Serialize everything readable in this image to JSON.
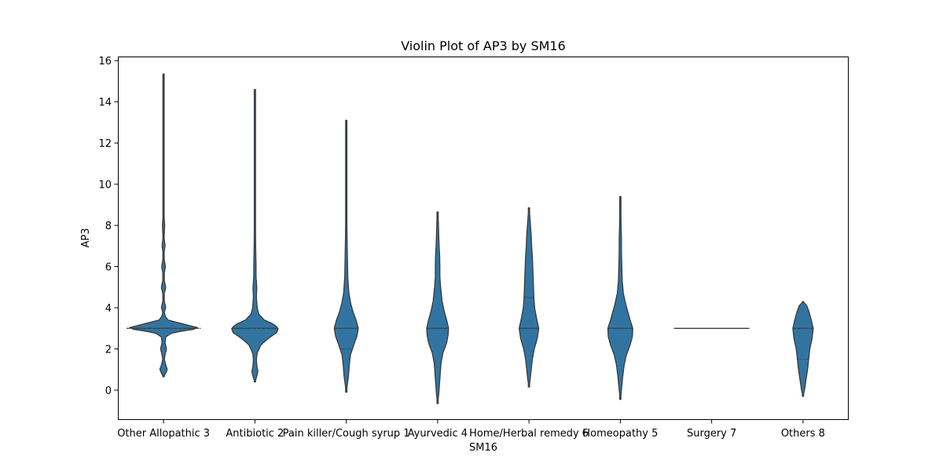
{
  "chart_data": {
    "type": "violin",
    "title": "Violin Plot of AP3 by SM16",
    "xlabel": "SM16",
    "ylabel": "AP3",
    "ylim": [
      -1.45,
      16.2
    ],
    "yticks": [
      0,
      2,
      4,
      6,
      8,
      10,
      12,
      14,
      16
    ],
    "violin_color": "#3274a1",
    "edge_color": "#3a3a3a",
    "categories": [
      "Other Allopathic 3",
      "Antibiotic 2",
      "Pain killer/Cough syrup 1",
      "Ayurvedic 4",
      "Home/Herbal remedy 6",
      "Homeopathy 5",
      "Surgery 7",
      "Others 8"
    ],
    "violins": [
      {
        "range": [
          0.65,
          15.35
        ],
        "quartiles": [
          3.0,
          3.0,
          3.0
        ],
        "profile": [
          [
            0.65,
            0.0
          ],
          [
            0.8,
            0.05
          ],
          [
            1.0,
            0.1
          ],
          [
            1.2,
            0.06
          ],
          [
            1.5,
            0.02
          ],
          [
            1.8,
            0.05
          ],
          [
            2.0,
            0.08
          ],
          [
            2.3,
            0.04
          ],
          [
            2.6,
            0.06
          ],
          [
            2.8,
            0.25
          ],
          [
            3.0,
            0.98
          ],
          [
            3.2,
            0.55
          ],
          [
            3.4,
            0.12
          ],
          [
            3.6,
            0.04
          ],
          [
            3.8,
            0.02
          ],
          [
            4.0,
            0.06
          ],
          [
            4.3,
            0.02
          ],
          [
            4.7,
            0.02
          ],
          [
            5.0,
            0.06
          ],
          [
            5.3,
            0.02
          ],
          [
            5.7,
            0.02
          ],
          [
            6.0,
            0.05
          ],
          [
            6.3,
            0.02
          ],
          [
            6.7,
            0.015
          ],
          [
            7.0,
            0.04
          ],
          [
            7.4,
            0.015
          ],
          [
            8.0,
            0.03
          ],
          [
            8.5,
            0.012
          ],
          [
            10,
            0.01
          ],
          [
            12,
            0.01
          ],
          [
            14,
            0.01
          ],
          [
            15.35,
            0.0
          ]
        ]
      },
      {
        "range": [
          0.4,
          14.6
        ],
        "quartiles": [
          3.0,
          3.0,
          3.0
        ],
        "profile": [
          [
            0.4,
            0.0
          ],
          [
            0.6,
            0.04
          ],
          [
            0.9,
            0.08
          ],
          [
            1.2,
            0.05
          ],
          [
            1.5,
            0.04
          ],
          [
            1.8,
            0.06
          ],
          [
            2.2,
            0.16
          ],
          [
            2.5,
            0.35
          ],
          [
            2.8,
            0.58
          ],
          [
            3.0,
            0.62
          ],
          [
            3.2,
            0.5
          ],
          [
            3.4,
            0.25
          ],
          [
            3.7,
            0.1
          ],
          [
            4.0,
            0.06
          ],
          [
            4.5,
            0.04
          ],
          [
            5.0,
            0.05
          ],
          [
            5.5,
            0.03
          ],
          [
            6.0,
            0.03
          ],
          [
            7.0,
            0.02
          ],
          [
            8.0,
            0.015
          ],
          [
            10,
            0.01
          ],
          [
            12,
            0.01
          ],
          [
            14.6,
            0.0
          ]
        ]
      },
      {
        "range": [
          -0.1,
          13.1
        ],
        "quartiles": [
          2.0,
          3.0,
          3.0
        ],
        "profile": [
          [
            -0.1,
            0.0
          ],
          [
            0.3,
            0.03
          ],
          [
            0.7,
            0.06
          ],
          [
            1.2,
            0.08
          ],
          [
            1.7,
            0.11
          ],
          [
            2.2,
            0.2
          ],
          [
            2.6,
            0.28
          ],
          [
            3.0,
            0.32
          ],
          [
            3.4,
            0.26
          ],
          [
            3.8,
            0.18
          ],
          [
            4.2,
            0.12
          ],
          [
            4.7,
            0.07
          ],
          [
            5.5,
            0.04
          ],
          [
            6.5,
            0.03
          ],
          [
            7.5,
            0.02
          ],
          [
            8.5,
            0.015
          ],
          [
            10,
            0.012
          ],
          [
            12,
            0.01
          ],
          [
            13.1,
            0.0
          ]
        ]
      },
      {
        "range": [
          -0.65,
          8.65
        ],
        "quartiles": [
          3.0,
          3.0,
          3.0
        ],
        "profile": [
          [
            -0.65,
            0.0
          ],
          [
            -0.2,
            0.03
          ],
          [
            0.3,
            0.05
          ],
          [
            0.8,
            0.07
          ],
          [
            1.3,
            0.09
          ],
          [
            1.8,
            0.14
          ],
          [
            2.3,
            0.24
          ],
          [
            2.7,
            0.28
          ],
          [
            3.0,
            0.29
          ],
          [
            3.4,
            0.24
          ],
          [
            3.8,
            0.18
          ],
          [
            4.3,
            0.12
          ],
          [
            5.0,
            0.08
          ],
          [
            5.5,
            0.06
          ],
          [
            6.0,
            0.06
          ],
          [
            6.5,
            0.055
          ],
          [
            7.0,
            0.04
          ],
          [
            7.5,
            0.03
          ],
          [
            8.2,
            0.02
          ],
          [
            8.65,
            0.0
          ]
        ]
      },
      {
        "range": [
          0.15,
          8.85
        ],
        "quartiles": [
          3.0,
          3.0,
          4.5
        ],
        "profile": [
          [
            0.15,
            0.0
          ],
          [
            0.5,
            0.03
          ],
          [
            1.0,
            0.06
          ],
          [
            1.5,
            0.09
          ],
          [
            2.0,
            0.14
          ],
          [
            2.5,
            0.22
          ],
          [
            3.0,
            0.26
          ],
          [
            3.5,
            0.2
          ],
          [
            4.0,
            0.15
          ],
          [
            4.5,
            0.13
          ],
          [
            5.0,
            0.12
          ],
          [
            5.5,
            0.11
          ],
          [
            6.0,
            0.1
          ],
          [
            6.5,
            0.09
          ],
          [
            7.0,
            0.07
          ],
          [
            7.5,
            0.06
          ],
          [
            8.0,
            0.04
          ],
          [
            8.5,
            0.02
          ],
          [
            8.85,
            0.0
          ]
        ]
      },
      {
        "range": [
          -0.45,
          9.4
        ],
        "quartiles": [
          3.0,
          3.0,
          3.0
        ],
        "profile": [
          [
            -0.45,
            0.0
          ],
          [
            0.0,
            0.03
          ],
          [
            0.6,
            0.06
          ],
          [
            1.2,
            0.1
          ],
          [
            1.7,
            0.16
          ],
          [
            2.2,
            0.26
          ],
          [
            2.6,
            0.32
          ],
          [
            3.0,
            0.33
          ],
          [
            3.4,
            0.26
          ],
          [
            3.8,
            0.2
          ],
          [
            4.2,
            0.14
          ],
          [
            4.7,
            0.08
          ],
          [
            5.3,
            0.05
          ],
          [
            6.0,
            0.04
          ],
          [
            6.7,
            0.03
          ],
          [
            7.3,
            0.03
          ],
          [
            8.0,
            0.02
          ],
          [
            8.7,
            0.015
          ],
          [
            9.4,
            0.0
          ]
        ]
      },
      {
        "range": [
          3.0,
          3.0
        ],
        "quartiles": [
          3.0,
          3.0,
          3.0
        ],
        "flat": true,
        "profile": []
      },
      {
        "range": [
          -0.3,
          4.3
        ],
        "quartiles": [
          1.5,
          3.0,
          3.0
        ],
        "profile": [
          [
            -0.3,
            0.0
          ],
          [
            0.0,
            0.04
          ],
          [
            0.5,
            0.08
          ],
          [
            1.0,
            0.12
          ],
          [
            1.5,
            0.15
          ],
          [
            2.0,
            0.18
          ],
          [
            2.5,
            0.24
          ],
          [
            3.0,
            0.27
          ],
          [
            3.4,
            0.22
          ],
          [
            3.8,
            0.16
          ],
          [
            4.1,
            0.1
          ],
          [
            4.3,
            0.0
          ]
        ]
      }
    ]
  }
}
